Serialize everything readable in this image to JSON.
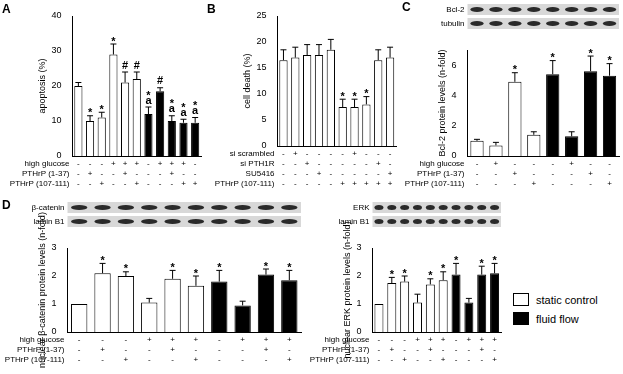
{
  "chart_data": [
    {
      "panel_label": "A",
      "type": "bar",
      "ylabel": "apoptosis (%)",
      "ylim": [
        0,
        40
      ],
      "yticks": [
        0,
        10,
        20,
        30,
        40
      ],
      "grid": false,
      "values": [
        20,
        10,
        11,
        29,
        21,
        22,
        12,
        18.5,
        10,
        9.5,
        9.5
      ],
      "errors": [
        1,
        1.5,
        1.5,
        3,
        3,
        2,
        2,
        1,
        1.5,
        1,
        1.5
      ],
      "colors": [
        "#ffffff",
        "#ffffff",
        "#ffffff",
        "#ffffff",
        "#ffffff",
        "#ffffff",
        "#000000",
        "#000000",
        "#000000",
        "#000000",
        "#000000"
      ],
      "annotations": [
        [],
        [
          "*"
        ],
        [
          "*"
        ],
        [
          "*"
        ],
        [
          "#"
        ],
        [
          "#"
        ],
        [
          "*",
          "a"
        ],
        [
          "#"
        ],
        [
          "*",
          "a"
        ],
        [
          "*",
          "a"
        ],
        [
          "*",
          "a"
        ]
      ],
      "conditions": [
        {
          "label": "high glucose",
          "values": [
            "-",
            "-",
            "-",
            "+",
            "+",
            "+",
            "-",
            "+",
            "+",
            "+",
            "-"
          ]
        },
        {
          "label": "PTHrP (1-37)",
          "values": [
            "-",
            "+",
            "-",
            "-",
            "+",
            "-",
            "-",
            "-",
            "+",
            "-",
            "-"
          ]
        },
        {
          "label": "PTHrP (107-111)",
          "values": [
            "-",
            "-",
            "+",
            "-",
            "-",
            "+",
            "-",
            "-",
            "-",
            "+",
            "+"
          ]
        }
      ]
    },
    {
      "panel_label": "B",
      "type": "bar",
      "ylabel": "cell death (%)",
      "ylim": [
        0,
        25
      ],
      "yticks": [
        0,
        5,
        10,
        15,
        20,
        25
      ],
      "grid": false,
      "values": [
        16.5,
        17,
        17.5,
        17.5,
        18.5,
        7.5,
        7.5,
        8,
        16.5,
        17
      ],
      "errors": [
        2,
        2,
        2,
        2,
        2,
        1.5,
        1.5,
        1.5,
        2,
        2
      ],
      "color": "#ffffff",
      "annotations": [
        [],
        [],
        [],
        [],
        [],
        [
          "*"
        ],
        [
          "*"
        ],
        [
          "*"
        ],
        [],
        []
      ],
      "conditions": [
        {
          "label": "si scrambled",
          "values": [
            "-",
            "+",
            "-",
            "-",
            "-",
            "-",
            "+",
            "-",
            "-",
            "-"
          ]
        },
        {
          "label": "si PTH1R",
          "values": [
            "-",
            "-",
            "+",
            "-",
            "-",
            "-",
            "-",
            "-",
            "+",
            "-"
          ]
        },
        {
          "label": "SU5416",
          "values": [
            "-",
            "-",
            "-",
            "+",
            "-",
            "-",
            "-",
            "-",
            "-",
            "+"
          ]
        },
        {
          "label": "PTHrP (107-111)",
          "values": [
            "-",
            "-",
            "-",
            "-",
            "-",
            "+",
            "+",
            "+",
            "+",
            "+"
          ]
        }
      ]
    },
    {
      "panel_label": "C",
      "type": "bar",
      "ylabel": "Bcl-2 protein levels (n-fold)",
      "ylim": [
        0,
        7
      ],
      "yticks": [
        0,
        2,
        4,
        6
      ],
      "grid": false,
      "blots": [
        "Bcl-2",
        "tubulin"
      ],
      "values": [
        1,
        0.7,
        4.9,
        1.4,
        5.4,
        1.3,
        5.6,
        5.3
      ],
      "errors": [
        0.1,
        0.2,
        0.6,
        0.2,
        0.9,
        0.3,
        1.0,
        0.8
      ],
      "colors": [
        "#ffffff",
        "#ffffff",
        "#ffffff",
        "#ffffff",
        "#000000",
        "#000000",
        "#000000",
        "#000000"
      ],
      "annotations": [
        [],
        [],
        [
          "*"
        ],
        [],
        [
          "*"
        ],
        [],
        [
          "*"
        ],
        [
          "*"
        ]
      ],
      "conditions": [
        {
          "label": "high glucose",
          "values": [
            "-",
            "+",
            "-",
            "-",
            "-",
            "+",
            "-",
            "-"
          ]
        },
        {
          "label": "PTHrP (1-37)",
          "values": [
            "-",
            "-",
            "+",
            "-",
            "-",
            "-",
            "+",
            "-"
          ]
        },
        {
          "label": "PTHrP (107-111)",
          "values": [
            "-",
            "-",
            "-",
            "+",
            "-",
            "-",
            "-",
            "+"
          ]
        }
      ]
    },
    {
      "panel_label": "D",
      "type": "bar",
      "ylabel": "nuclear β-catenin protein levels (n-fold)",
      "ylim": [
        0,
        3
      ],
      "yticks": [
        0,
        1,
        2,
        3
      ],
      "grid": false,
      "blots": [
        "β-catenin",
        "lamin B1"
      ],
      "values": [
        1,
        2.1,
        2.0,
        1.05,
        1.9,
        1.65,
        1.8,
        0.95,
        2.05,
        1.85
      ],
      "errors": [
        0,
        0.35,
        0.15,
        0.15,
        0.3,
        0.35,
        0.4,
        0.15,
        0.2,
        0.35
      ],
      "colors": [
        "#ffffff",
        "#ffffff",
        "#ffffff",
        "#ffffff",
        "#ffffff",
        "#ffffff",
        "#000000",
        "#000000",
        "#000000",
        "#000000"
      ],
      "annotations": [
        [],
        [
          "*"
        ],
        [
          "*"
        ],
        [],
        [
          "*"
        ],
        [
          "*"
        ],
        [
          "*"
        ],
        [],
        [
          "*"
        ],
        [
          "*"
        ]
      ],
      "conditions": [
        {
          "label": "high glucose",
          "values": [
            "-",
            "-",
            "-",
            "+",
            "+",
            "+",
            "-",
            "+",
            "+",
            "+"
          ]
        },
        {
          "label": "PTHrP (1-37)",
          "values": [
            "-",
            "+",
            "-",
            "-",
            "+",
            "-",
            "-",
            "-",
            "+",
            "-"
          ]
        },
        {
          "label": "PTHrP (107-111)",
          "values": [
            "-",
            "-",
            "+",
            "-",
            "-",
            "+",
            "-",
            "-",
            "-",
            "+"
          ]
        }
      ]
    },
    {
      "type": "bar",
      "ylabel": "nuclear ERK protein levels (n-fold)",
      "ylim": [
        0,
        3
      ],
      "yticks": [
        0,
        1,
        2,
        3
      ],
      "grid": false,
      "legend": "lower right",
      "blots": [
        "ERK",
        "lamin B1"
      ],
      "series": [
        {
          "name": "static control",
          "color": "#ffffff",
          "values": [
            1,
            1.75,
            1.8,
            1.05,
            1.7,
            1.85,
            null,
            null,
            null,
            null
          ]
        },
        {
          "name": "fluid flow",
          "color": "#000000",
          "values": [
            null,
            null,
            null,
            null,
            null,
            null,
            2.05,
            1.05,
            2.05,
            2.1
          ]
        }
      ],
      "errors": [
        0,
        0.2,
        0.2,
        0.3,
        0.2,
        0.3,
        0.4,
        0.15,
        0.3,
        0.35
      ],
      "annotations": [
        [],
        [
          "*"
        ],
        [
          "*"
        ],
        [],
        [
          "*"
        ],
        [
          "*"
        ],
        [
          "*"
        ],
        [],
        [
          "*"
        ],
        [
          "*"
        ]
      ],
      "conditions": [
        {
          "label": "high glucose",
          "values": [
            "-",
            "-",
            "-",
            "+",
            "+",
            "+",
            "-",
            "+",
            "+",
            "+"
          ]
        },
        {
          "label": "PTHrP (1-37)",
          "values": [
            "-",
            "+",
            "-",
            "-",
            "+",
            "-",
            "-",
            "-",
            "+",
            "-"
          ]
        },
        {
          "label": "PTHrP (107-111)",
          "values": [
            "-",
            "-",
            "+",
            "-",
            "-",
            "+",
            "-",
            "-",
            "-",
            "+"
          ]
        }
      ]
    }
  ]
}
